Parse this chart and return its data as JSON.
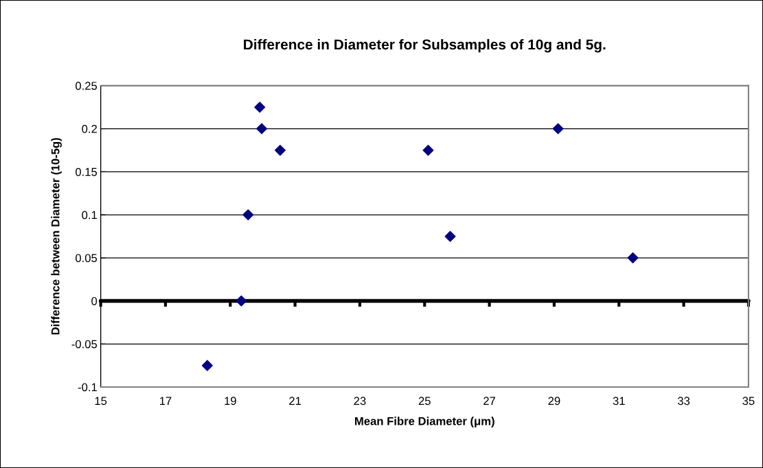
{
  "chart_data": {
    "type": "scatter",
    "title": "Difference in Diameter for Subsamples of 10g and 5g.",
    "xlabel": "Mean Fibre Diameter (μm)",
    "ylabel": "Difference between Diameter (10-5g)",
    "x": [
      18.29,
      19.34,
      19.55,
      19.91,
      19.97,
      20.54,
      25.11,
      25.79,
      29.12,
      31.43
    ],
    "series": [
      {
        "color": "#000080",
        "values": [
          -0.075,
          0,
          0.1,
          0.225,
          0.2,
          0.175,
          0.175,
          0.075,
          0.2,
          0.05
        ]
      }
    ],
    "xlim": [
      15,
      35
    ],
    "xticks": [
      15,
      17,
      19,
      21,
      23,
      25,
      27,
      29,
      31,
      33,
      35
    ],
    "ylim": [
      -0.1,
      0.25
    ],
    "yticks": [
      -0.1,
      -0.05,
      0,
      0.05,
      0.1,
      0.15,
      0.2,
      0.25
    ],
    "grid": "y",
    "marker": "diamond"
  }
}
